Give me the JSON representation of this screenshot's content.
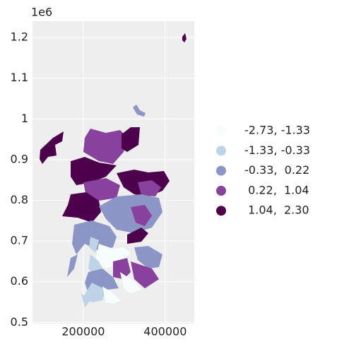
{
  "chart_data": {
    "type": "choropleth",
    "offset_label": "1e6",
    "xlim": [
      76000,
      471000
    ],
    "xticks": [
      200000,
      400000
    ],
    "ylim": [
      0.497,
      1.24
    ],
    "yticks": [
      0.5,
      0.6,
      0.7,
      0.8,
      0.9,
      1.0,
      1.1,
      1.2
    ],
    "grid": true,
    "legend": [
      {
        "label": "-2.73, -1.33",
        "color": "#f7fcfd"
      },
      {
        "label": "-1.33, -0.33",
        "color": "#bfd3e6"
      },
      {
        "label": "-0.33,  0.22",
        "color": "#8c96c6"
      },
      {
        "label": " 0.22,  1.04",
        "color": "#88419d"
      },
      {
        "label": " 1.04,  2.30",
        "color": "#4d004b"
      }
    ]
  }
}
